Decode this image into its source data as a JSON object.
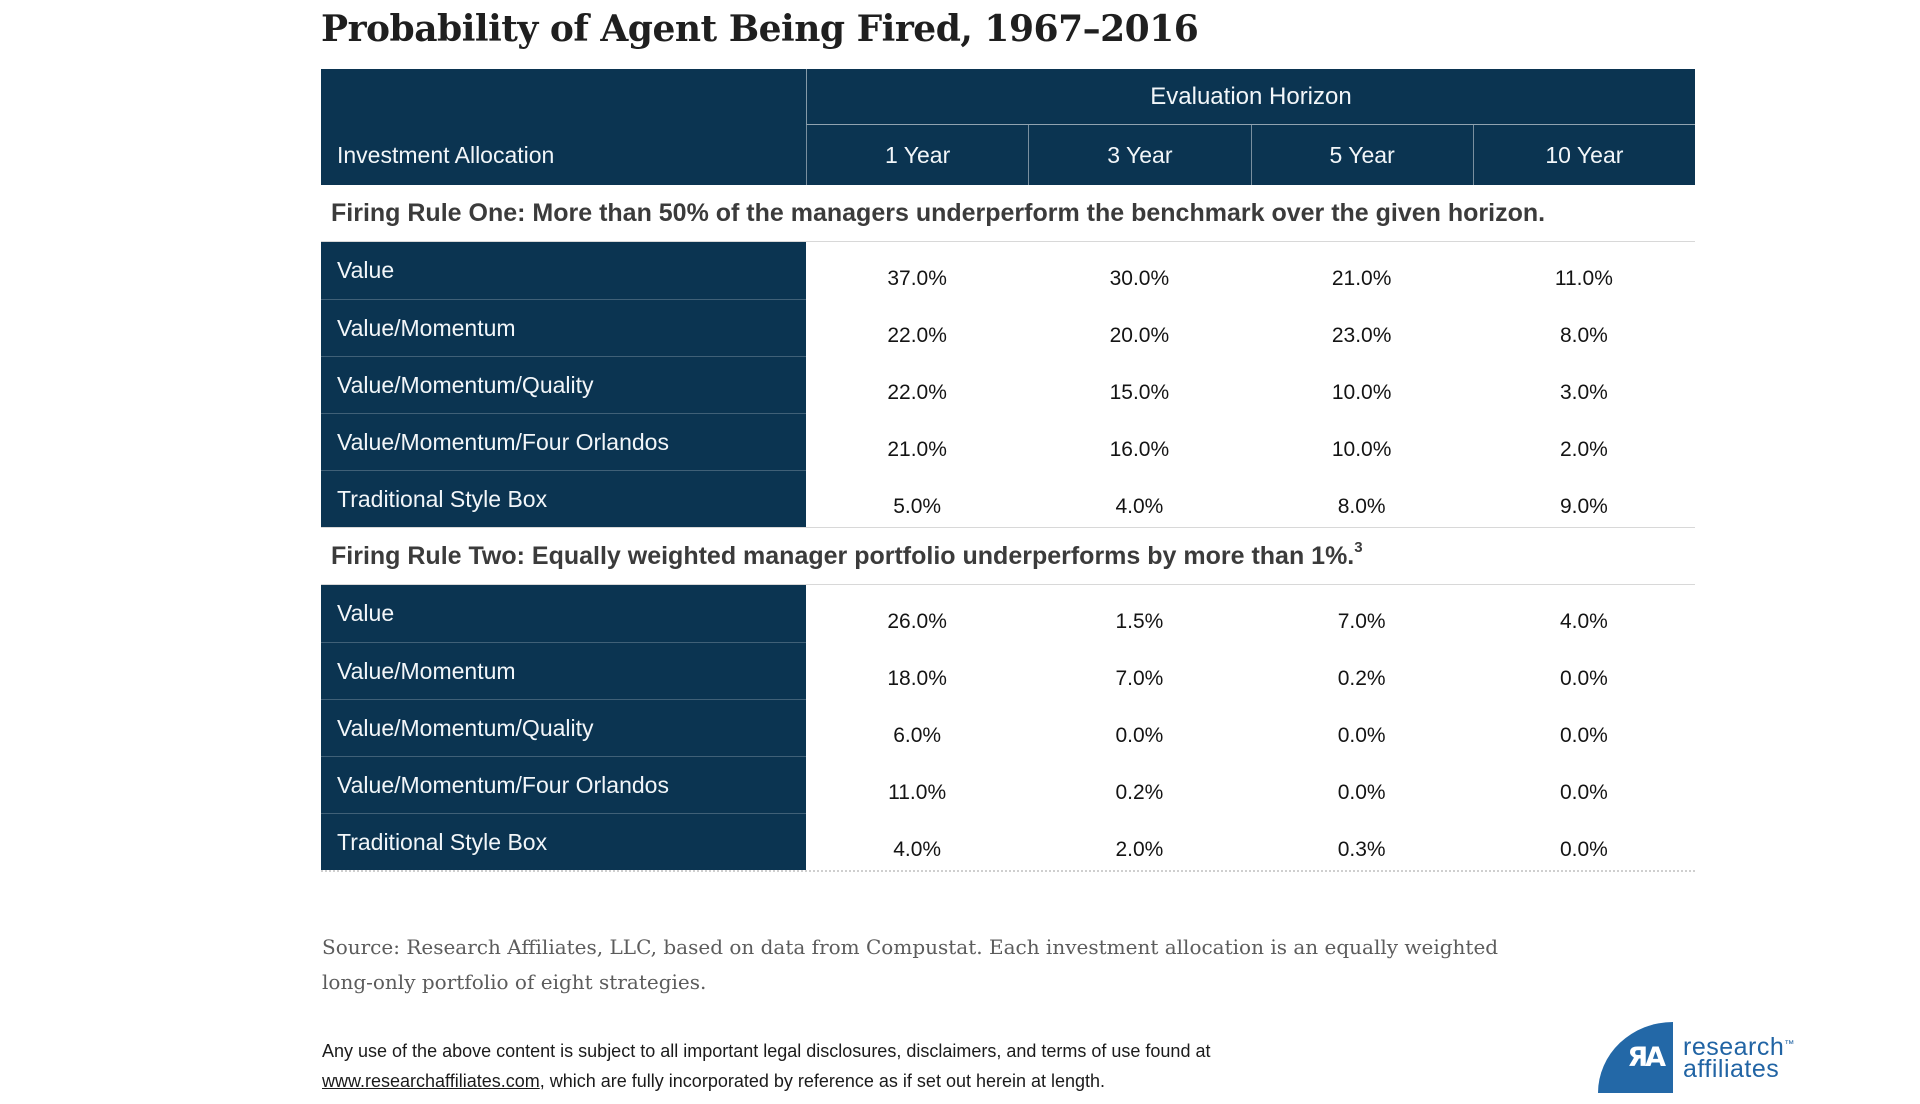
{
  "title": "Probability of Agent Being Fired, 1967–2016",
  "table": {
    "header_group": "Evaluation Horizon",
    "row_header": "Investment Allocation",
    "columns": [
      "1 Year",
      "3 Year",
      "5 Year",
      "10 Year"
    ],
    "sections": [
      {
        "heading": "Firing Rule One: More than 50% of the managers underperform the benchmark over the given horizon.",
        "footnote": "",
        "rows": [
          {
            "label": "Value",
            "values": [
              "37.0%",
              "30.0%",
              "21.0%",
              "11.0%"
            ]
          },
          {
            "label": "Value/Momentum",
            "values": [
              "22.0%",
              "20.0%",
              "23.0%",
              "8.0%"
            ]
          },
          {
            "label": "Value/Momentum/Quality",
            "values": [
              "22.0%",
              "15.0%",
              "10.0%",
              "3.0%"
            ]
          },
          {
            "label": "Value/Momentum/Four Orlandos",
            "values": [
              "21.0%",
              "16.0%",
              "10.0%",
              "2.0%"
            ]
          },
          {
            "label": "Traditional Style Box",
            "values": [
              "5.0%",
              "4.0%",
              "8.0%",
              "9.0%"
            ]
          }
        ]
      },
      {
        "heading": "Firing Rule Two: Equally weighted manager portfolio underperforms by more than 1%.",
        "footnote": "3",
        "rows": [
          {
            "label": "Value",
            "values": [
              "26.0%",
              "1.5%",
              "7.0%",
              "4.0%"
            ]
          },
          {
            "label": "Value/Momentum",
            "values": [
              "18.0%",
              "7.0%",
              "0.2%",
              "0.0%"
            ]
          },
          {
            "label": "Value/Momentum/Quality",
            "values": [
              "6.0%",
              "0.0%",
              "0.0%",
              "0.0%"
            ]
          },
          {
            "label": "Value/Momentum/Four Orlandos",
            "values": [
              "11.0%",
              "0.2%",
              "0.0%",
              "0.0%"
            ]
          },
          {
            "label": "Traditional Style Box",
            "values": [
              "4.0%",
              "2.0%",
              "0.3%",
              "0.0%"
            ]
          }
        ]
      }
    ]
  },
  "source": {
    "line1": "Source: Research Affiliates, LLC, based on data from Compustat. Each investment allocation is an equally weighted",
    "line2": "long-only portfolio of eight strategies."
  },
  "legal": {
    "line1": "Any use of the above content is subject to all important legal disclosures, disclaimers, and terms of use found at",
    "link": "www.researchaffiliates.com",
    "line2_rest": ", which are fully incorporated by reference as if set out herein at length."
  },
  "logo": {
    "monogram": "ЯA",
    "word1": "research",
    "word2": "affiliates",
    "trademark": "™"
  },
  "colors": {
    "navy": "#0b3451",
    "logo_blue": "#2368a7",
    "heading_text": "#3b3b3b",
    "source_text": "#5c5c5c",
    "divider": "#d8d8d8"
  }
}
